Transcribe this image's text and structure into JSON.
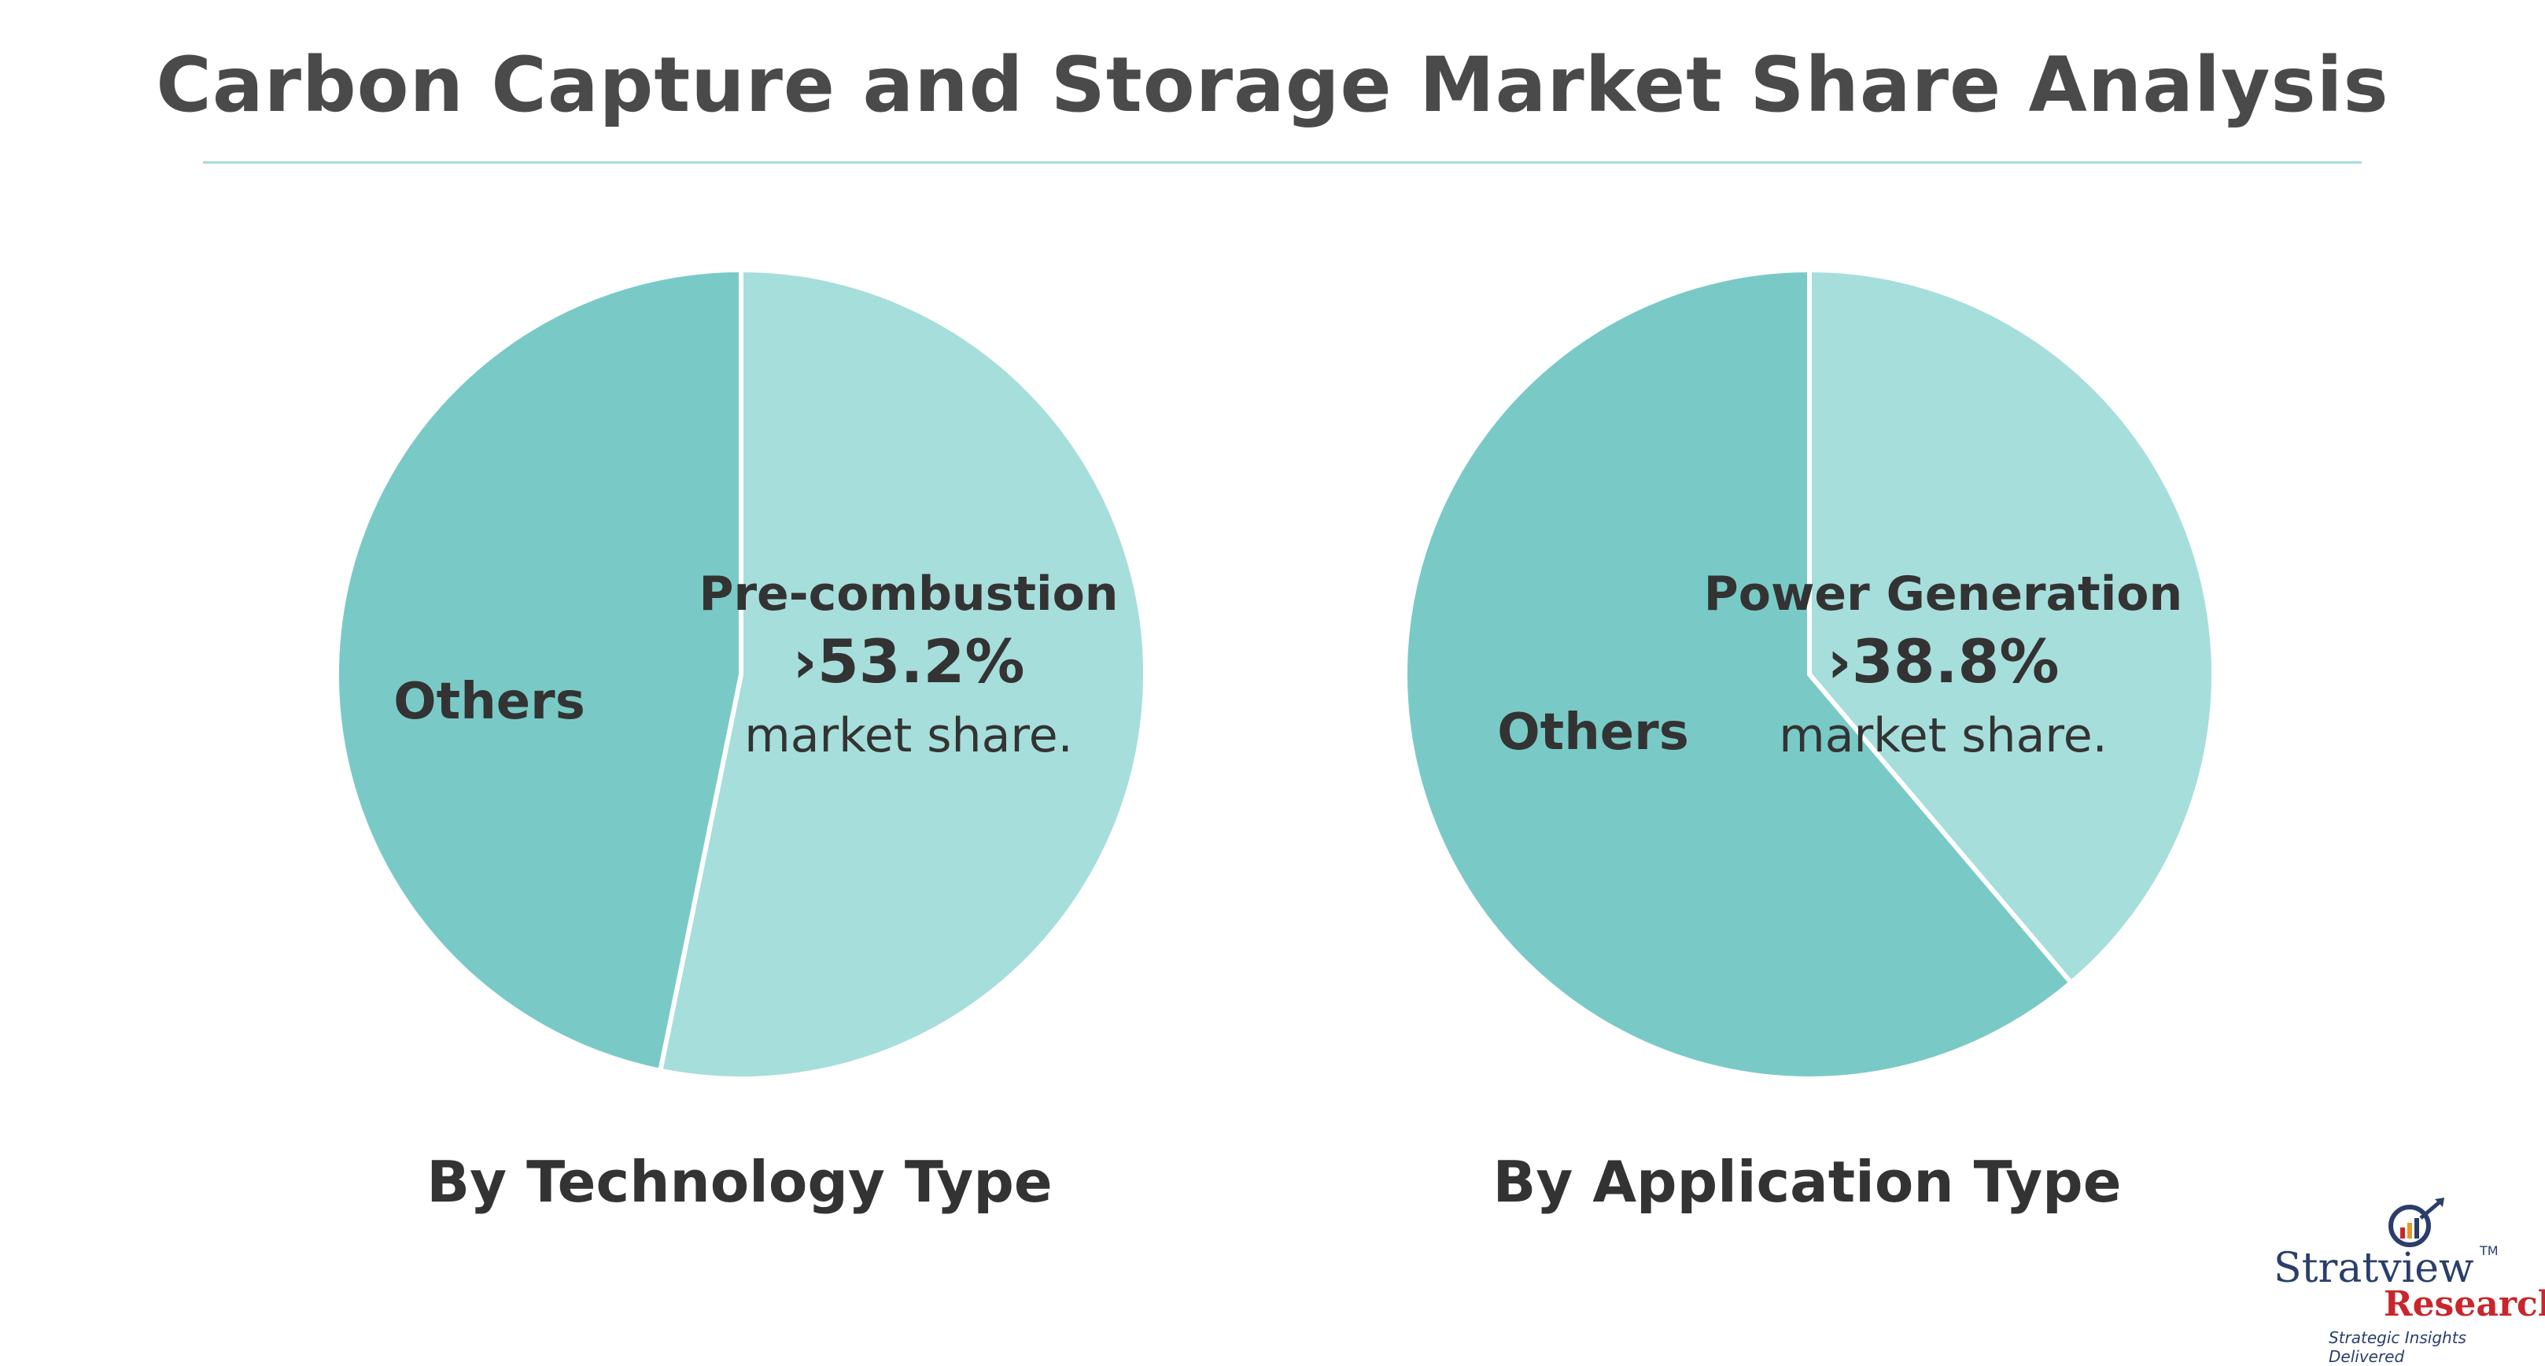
{
  "title": "Carbon Capture and Storage Market Share Analysis",
  "colors": {
    "primary_slice": "#a6dedb",
    "others_slice": "#79cac7",
    "divider": "#ffffff",
    "text": "#333333"
  },
  "chart_data": [
    {
      "type": "pie",
      "title": "By Technology Type",
      "slices": [
        {
          "label": "Pre-combustion",
          "value": 53.2,
          "value_text": "›53.2%",
          "note": "market share."
        },
        {
          "label": "Others",
          "value": 46.8
        }
      ]
    },
    {
      "type": "pie",
      "title": "By Application Type",
      "slices": [
        {
          "label": "Power Generation",
          "value": 38.8,
          "value_text": "›38.8%",
          "note": "market share."
        },
        {
          "label": "Others",
          "value": 61.2
        }
      ]
    }
  ],
  "logo": {
    "name_part1": "Stratview",
    "trademark": "TM",
    "name_part2": "Research",
    "tagline": "Strategic Insights Delivered"
  }
}
